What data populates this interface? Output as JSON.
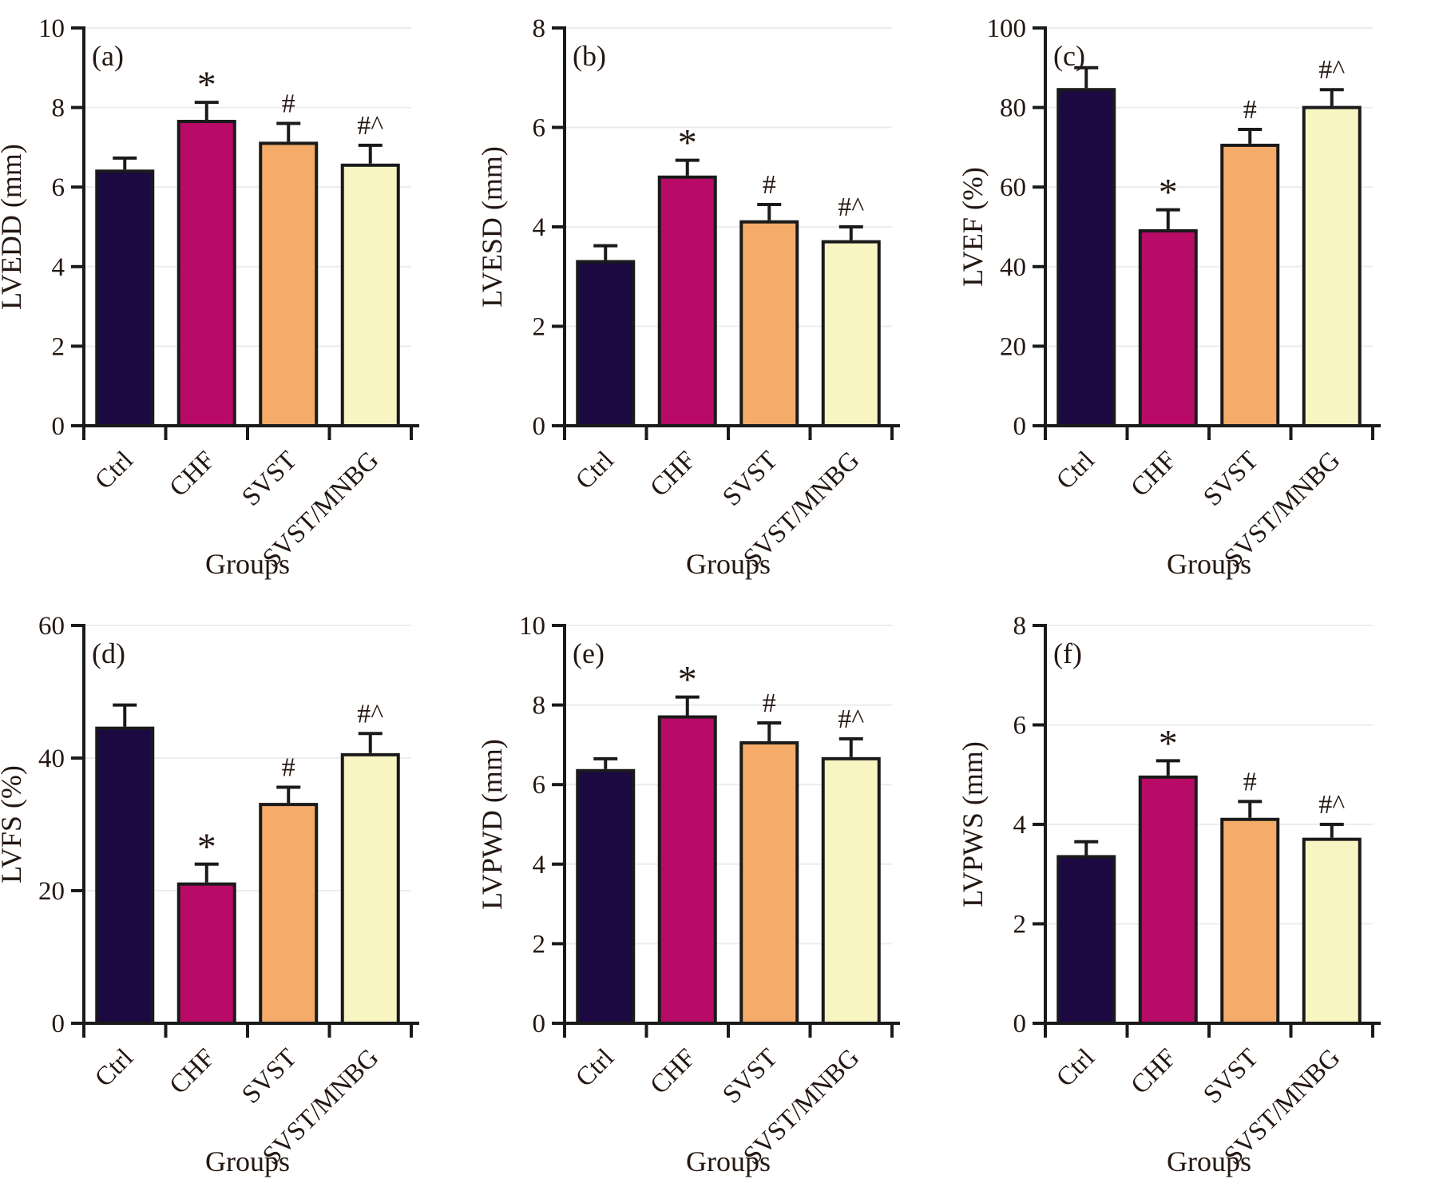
{
  "styles": {
    "bar_colors": [
      "#1c0942",
      "#b70b67",
      "#f5ac6a",
      "#f8f5c3"
    ],
    "axis_color": "#1a1a1a",
    "text_color": "#241711",
    "grid_color": "#ececec"
  },
  "chart_data": [
    {
      "type": "bar",
      "panel_label": "(a)",
      "ylabel": "LVEDD (mm)",
      "xlabel": "Groups",
      "categories": [
        "Ctrl",
        "CHF",
        "SVST",
        "SVST/MNBG"
      ],
      "values": [
        6.4,
        7.65,
        7.1,
        6.55
      ],
      "errors": [
        0.33,
        0.48,
        0.5,
        0.5
      ],
      "significance": [
        "",
        "*",
        "#",
        "#^"
      ],
      "ylim": [
        0,
        10
      ],
      "ytick_step": 2,
      "grid": true,
      "legend": "none"
    },
    {
      "type": "bar",
      "panel_label": "(b)",
      "ylabel": "LVESD (mm)",
      "xlabel": "Groups",
      "categories": [
        "Ctrl",
        "CHF",
        "SVST",
        "SVST/MNBG"
      ],
      "values": [
        3.3,
        5.0,
        4.1,
        3.7
      ],
      "errors": [
        0.32,
        0.34,
        0.35,
        0.3
      ],
      "significance": [
        "",
        "*",
        "#",
        "#^"
      ],
      "ylim": [
        0,
        8
      ],
      "ytick_step": 2,
      "grid": true,
      "legend": "none"
    },
    {
      "type": "bar",
      "panel_label": "(c)",
      "ylabel": "LVEF (%)",
      "xlabel": "Groups",
      "categories": [
        "Ctrl",
        "CHF",
        "SVST",
        "SVST/MNBG"
      ],
      "values": [
        84.5,
        49,
        70.5,
        80
      ],
      "errors": [
        5.5,
        5.3,
        4,
        4.5
      ],
      "significance": [
        "",
        "*",
        "#",
        "#^"
      ],
      "ylim": [
        0,
        100
      ],
      "ytick_step": 20,
      "grid": true,
      "legend": "none"
    },
    {
      "type": "bar",
      "panel_label": "(d)",
      "ylabel": "LVFS (%)",
      "xlabel": "Groups",
      "categories": [
        "Ctrl",
        "CHF",
        "SVST",
        "SVST/MNBG"
      ],
      "values": [
        44.5,
        21,
        33,
        40.5
      ],
      "errors": [
        3.5,
        3,
        2.6,
        3.2
      ],
      "significance": [
        "",
        "*",
        "#",
        "#^"
      ],
      "ylim": [
        0,
        60
      ],
      "ytick_step": 20,
      "grid": true,
      "legend": "none"
    },
    {
      "type": "bar",
      "panel_label": "(e)",
      "ylabel": "LVPWD (mm)",
      "xlabel": "Groups",
      "categories": [
        "Ctrl",
        "CHF",
        "SVST",
        "SVST/MNBG"
      ],
      "values": [
        6.35,
        7.7,
        7.05,
        6.65
      ],
      "errors": [
        0.3,
        0.5,
        0.5,
        0.5
      ],
      "significance": [
        "",
        "*",
        "#",
        "#^"
      ],
      "ylim": [
        0,
        10
      ],
      "ytick_step": 2,
      "grid": true,
      "legend": "none"
    },
    {
      "type": "bar",
      "panel_label": "(f)",
      "ylabel": "LVPWS (mm)",
      "xlabel": "Groups",
      "categories": [
        "Ctrl",
        "CHF",
        "SVST",
        "SVST/MNBG"
      ],
      "values": [
        3.35,
        4.95,
        4.1,
        3.7
      ],
      "errors": [
        0.3,
        0.33,
        0.36,
        0.3
      ],
      "significance": [
        "",
        "*",
        "#",
        "#^"
      ],
      "ylim": [
        0,
        8
      ],
      "ytick_step": 2,
      "grid": true,
      "legend": "none"
    }
  ]
}
